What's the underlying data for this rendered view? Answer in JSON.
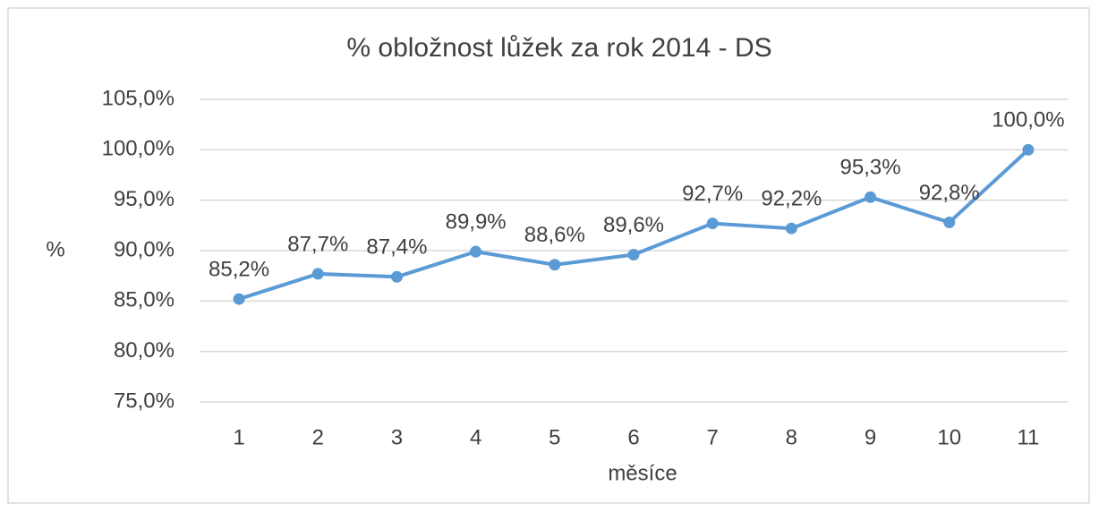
{
  "chart_data": {
    "type": "line",
    "title": "% obložnost lůžek za rok 2014 - DS",
    "x_label": "měsíce",
    "y_label": "%",
    "categories": [
      "1",
      "2",
      "3",
      "4",
      "5",
      "6",
      "7",
      "8",
      "9",
      "10",
      "11"
    ],
    "series": [
      {
        "name": "% obložnost",
        "color": "#5b9bd5",
        "values": [
          85.2,
          87.7,
          87.4,
          89.9,
          88.6,
          89.6,
          92.7,
          92.2,
          95.3,
          92.8,
          100.0
        ],
        "value_labels": [
          "85,2%",
          "87,7%",
          "87,4%",
          "89,9%",
          "88,6%",
          "89,6%",
          "92,7%",
          "92,2%",
          "95,3%",
          "92,8%",
          "100,0%"
        ]
      }
    ],
    "ylim": [
      75,
      105
    ],
    "yticks": [
      {
        "value": 75,
        "label": "75,0%"
      },
      {
        "value": 80,
        "label": "80,0%"
      },
      {
        "value": 85,
        "label": "85,0%"
      },
      {
        "value": 90,
        "label": "90,0%"
      },
      {
        "value": 95,
        "label": "95,0%"
      },
      {
        "value": 100,
        "label": "100,0%"
      },
      {
        "value": 105,
        "label": "105,0%"
      }
    ],
    "grid": true
  }
}
